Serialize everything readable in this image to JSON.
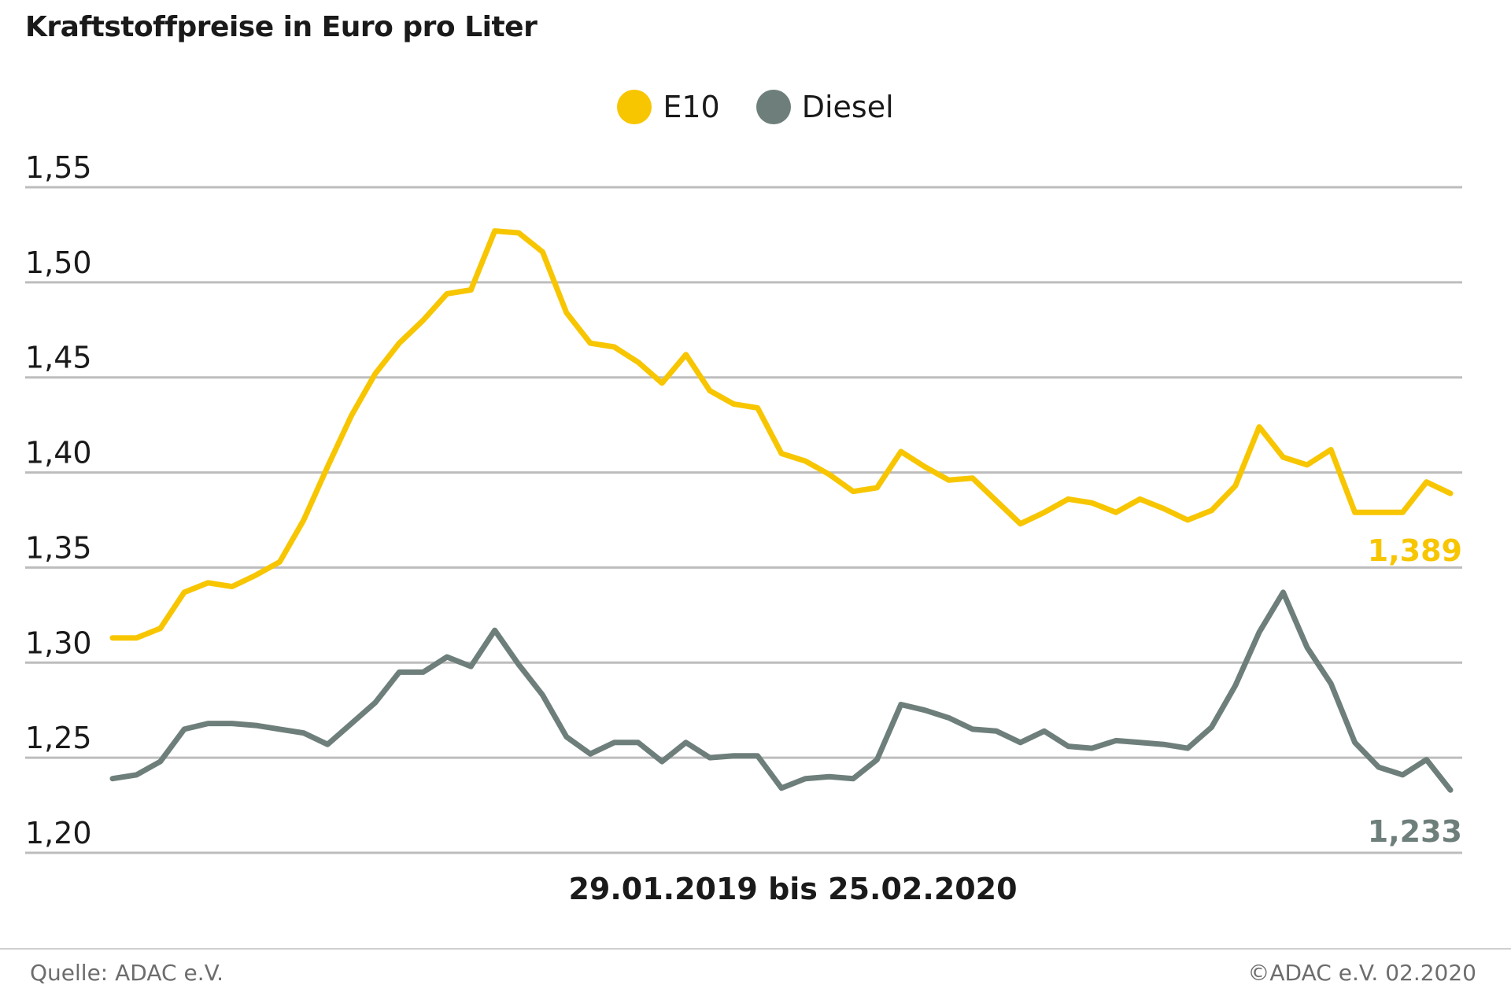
{
  "chart_data": {
    "type": "line",
    "title": "Kraftstoffpreise in Euro pro Liter",
    "subtitle": "29.01.2019 bis 25.02.2020",
    "xlabel": "",
    "ylabel": "",
    "ylim": [
      1.2,
      1.55
    ],
    "y_ticks": [
      "1,20",
      "1,25",
      "1,30",
      "1,35",
      "1,40",
      "1,45",
      "1,50",
      "1,55"
    ],
    "y_tick_values": [
      1.2,
      1.25,
      1.3,
      1.35,
      1.4,
      1.45,
      1.5,
      1.55
    ],
    "grid": true,
    "legend_position": "top-center",
    "series": [
      {
        "name": "E10",
        "color": "#F7C600",
        "end_label": "1,389",
        "values": [
          1.313,
          1.313,
          1.318,
          1.337,
          1.342,
          1.34,
          1.346,
          1.353,
          1.375,
          1.403,
          1.43,
          1.452,
          1.468,
          1.48,
          1.494,
          1.496,
          1.527,
          1.526,
          1.516,
          1.484,
          1.468,
          1.466,
          1.458,
          1.447,
          1.462,
          1.443,
          1.436,
          1.434,
          1.41,
          1.406,
          1.399,
          1.39,
          1.392,
          1.411,
          1.403,
          1.396,
          1.397,
          1.385,
          1.373,
          1.379,
          1.386,
          1.384,
          1.379,
          1.386,
          1.381,
          1.375,
          1.38,
          1.393,
          1.424,
          1.408,
          1.404,
          1.412,
          1.379,
          1.379,
          1.379,
          1.395,
          1.389
        ]
      },
      {
        "name": "Diesel",
        "color": "#6E7F7B",
        "end_label": "1,233",
        "values": [
          1.239,
          1.241,
          1.248,
          1.265,
          1.268,
          1.268,
          1.267,
          1.265,
          1.263,
          1.257,
          1.268,
          1.279,
          1.295,
          1.295,
          1.303,
          1.298,
          1.317,
          1.299,
          1.283,
          1.261,
          1.252,
          1.258,
          1.258,
          1.248,
          1.258,
          1.25,
          1.251,
          1.251,
          1.234,
          1.239,
          1.24,
          1.239,
          1.249,
          1.278,
          1.275,
          1.271,
          1.265,
          1.264,
          1.258,
          1.264,
          1.256,
          1.255,
          1.259,
          1.258,
          1.257,
          1.255,
          1.266,
          1.288,
          1.316,
          1.337,
          1.308,
          1.289,
          1.258,
          1.245,
          1.241,
          1.249,
          1.233
        ]
      }
    ]
  },
  "legend": {
    "items": [
      {
        "label": "E10",
        "color": "#F7C600"
      },
      {
        "label": "Diesel",
        "color": "#6E7F7B"
      }
    ]
  },
  "footer": {
    "source": "Quelle: ADAC e.V.",
    "copyright": "©ADAC e.V.  02.2020"
  }
}
